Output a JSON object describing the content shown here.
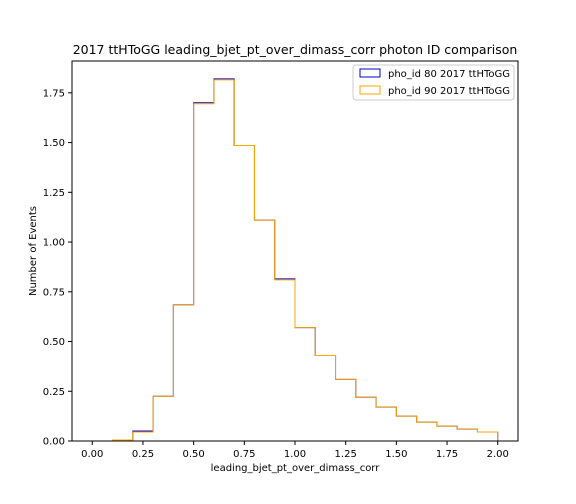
{
  "chart_data": {
    "type": "step",
    "title": "2017 ttHToGG leading_bjet_pt_over_dimass_corr photon ID comparison",
    "xlabel": "leading_bjet_pt_over_dimass_corr",
    "ylabel": "Number of Events",
    "xlim": [
      -0.1,
      2.1
    ],
    "ylim": [
      0,
      1.91
    ],
    "xticks": [
      "0.00",
      "0.25",
      "0.50",
      "0.75",
      "1.00",
      "1.25",
      "1.50",
      "1.75",
      "2.00"
    ],
    "yticks": [
      "0.00",
      "0.25",
      "0.50",
      "0.75",
      "1.00",
      "1.25",
      "1.50",
      "1.75"
    ],
    "grid": false,
    "legend_position": "top-right",
    "bin_edges": [
      0.0,
      0.1,
      0.2,
      0.3,
      0.4,
      0.5,
      0.6,
      0.7,
      0.8,
      0.9,
      1.0,
      1.1,
      1.2,
      1.3,
      1.4,
      1.5,
      1.6,
      1.7,
      1.8,
      1.9,
      2.0
    ],
    "series": [
      {
        "name": "pho_id 80 2017 ttHToGG",
        "color": "#0000cc",
        "values": [
          0.0,
          0.005,
          0.05,
          0.225,
          0.685,
          1.7,
          1.82,
          1.485,
          1.11,
          0.815,
          0.57,
          0.43,
          0.31,
          0.22,
          0.17,
          0.125,
          0.095,
          0.075,
          0.06,
          0.045
        ]
      },
      {
        "name": "pho_id 90 2017 ttHToGG",
        "color": "#ffa500",
        "values": [
          0.0,
          0.005,
          0.045,
          0.225,
          0.685,
          1.695,
          1.815,
          1.485,
          1.11,
          0.81,
          0.57,
          0.43,
          0.31,
          0.22,
          0.17,
          0.125,
          0.095,
          0.075,
          0.06,
          0.045
        ]
      }
    ]
  }
}
